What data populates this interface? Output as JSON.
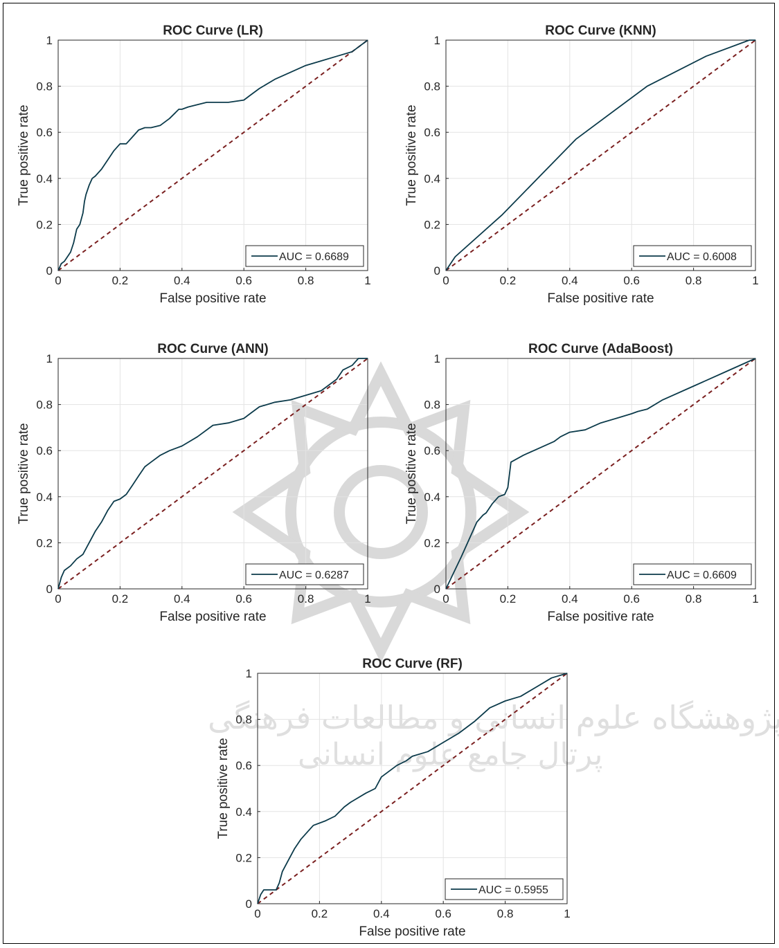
{
  "watermark": {
    "line1": "پژوهشگاه علوم انسانی و مطالعات فرهنگی",
    "line2": "پرتال جامع علوم انسانی"
  },
  "colors": {
    "curve": "#0b3a4a",
    "diagonal": "#7a1f1f",
    "grid": "#e3e3e3",
    "axis": "#262626"
  },
  "chart_data": [
    {
      "type": "line",
      "title": "ROC Curve (LR)",
      "xlabel": "False positive rate",
      "ylabel": "True positive rate",
      "xlim": [
        0,
        1
      ],
      "ylim": [
        0,
        1
      ],
      "xticks": [
        "0",
        "0.2",
        "0.4",
        "0.6",
        "0.8",
        "1"
      ],
      "yticks": [
        "0",
        "0.2",
        "0.4",
        "0.6",
        "0.8",
        "1"
      ],
      "grid": true,
      "legend_position": "bottom-right",
      "series": [
        {
          "name": "AUC = 0.6689",
          "x": [
            0,
            0.01,
            0.02,
            0.04,
            0.05,
            0.06,
            0.07,
            0.08,
            0.085,
            0.09,
            0.1,
            0.11,
            0.12,
            0.14,
            0.16,
            0.18,
            0.2,
            0.22,
            0.24,
            0.26,
            0.28,
            0.3,
            0.33,
            0.36,
            0.39,
            0.4,
            0.42,
            0.45,
            0.48,
            0.5,
            0.55,
            0.6,
            0.62,
            0.65,
            0.7,
            0.75,
            0.8,
            0.85,
            0.9,
            0.95,
            1.0
          ],
          "y": [
            0,
            0.03,
            0.04,
            0.08,
            0.12,
            0.18,
            0.2,
            0.25,
            0.3,
            0.33,
            0.37,
            0.4,
            0.41,
            0.44,
            0.48,
            0.52,
            0.55,
            0.55,
            0.58,
            0.61,
            0.62,
            0.62,
            0.63,
            0.66,
            0.7,
            0.7,
            0.71,
            0.72,
            0.73,
            0.73,
            0.73,
            0.74,
            0.76,
            0.79,
            0.83,
            0.86,
            0.89,
            0.91,
            0.93,
            0.95,
            1.0
          ]
        }
      ],
      "reference": {
        "x": [
          0,
          1
        ],
        "y": [
          0,
          1
        ]
      }
    },
    {
      "type": "line",
      "title": "ROC Curve (KNN)",
      "xlabel": "False positive rate",
      "ylabel": "True positive rate",
      "xlim": [
        0,
        1
      ],
      "ylim": [
        0,
        1
      ],
      "xticks": [
        "0",
        "0.2",
        "0.4",
        "0.6",
        "0.8",
        "1"
      ],
      "yticks": [
        "0",
        "0.2",
        "0.4",
        "0.6",
        "0.8",
        "1"
      ],
      "grid": true,
      "legend_position": "bottom-right",
      "series": [
        {
          "name": "AUC = 0.6008",
          "x": [
            0,
            0.03,
            0.18,
            0.42,
            0.65,
            0.84,
            0.98,
            1.0
          ],
          "y": [
            0,
            0.06,
            0.24,
            0.57,
            0.8,
            0.93,
            1.0,
            1.0
          ]
        }
      ],
      "reference": {
        "x": [
          0,
          1
        ],
        "y": [
          0,
          1
        ]
      }
    },
    {
      "type": "line",
      "title": "ROC Curve (ANN)",
      "xlabel": "False positive rate",
      "ylabel": "True positive rate",
      "xlim": [
        0,
        1
      ],
      "ylim": [
        0,
        1
      ],
      "xticks": [
        "0",
        "0.2",
        "0.4",
        "0.6",
        "0.8",
        "1"
      ],
      "yticks": [
        "0",
        "0.2",
        "0.4",
        "0.6",
        "0.8",
        "1"
      ],
      "grid": true,
      "legend_position": "bottom-right",
      "series": [
        {
          "name": "AUC = 0.6287",
          "x": [
            0,
            0.01,
            0.02,
            0.04,
            0.06,
            0.08,
            0.1,
            0.12,
            0.14,
            0.16,
            0.18,
            0.2,
            0.22,
            0.24,
            0.26,
            0.28,
            0.3,
            0.33,
            0.36,
            0.4,
            0.45,
            0.5,
            0.55,
            0.6,
            0.62,
            0.65,
            0.7,
            0.75,
            0.8,
            0.85,
            0.9,
            0.92,
            0.95,
            0.97,
            1.0
          ],
          "y": [
            0,
            0.05,
            0.08,
            0.1,
            0.13,
            0.15,
            0.2,
            0.25,
            0.29,
            0.34,
            0.38,
            0.39,
            0.41,
            0.45,
            0.49,
            0.53,
            0.55,
            0.58,
            0.6,
            0.62,
            0.66,
            0.71,
            0.72,
            0.74,
            0.76,
            0.79,
            0.81,
            0.82,
            0.84,
            0.86,
            0.91,
            0.95,
            0.97,
            1.0,
            1.0
          ]
        }
      ],
      "reference": {
        "x": [
          0,
          1
        ],
        "y": [
          0,
          1
        ]
      }
    },
    {
      "type": "line",
      "title": "ROC Curve (AdaBoost)",
      "xlabel": "False positive rate",
      "ylabel": "True positive rate",
      "xlim": [
        0,
        1
      ],
      "ylim": [
        0,
        1
      ],
      "xticks": [
        "0",
        "0.2",
        "0.4",
        "0.6",
        "0.8",
        "1"
      ],
      "yticks": [
        "0",
        "0.2",
        "0.4",
        "0.6",
        "0.8",
        "1"
      ],
      "grid": true,
      "legend_position": "bottom-right",
      "series": [
        {
          "name": "AUC = 0.6609",
          "x": [
            0,
            0.05,
            0.1,
            0.12,
            0.13,
            0.15,
            0.17,
            0.19,
            0.2,
            0.21,
            0.25,
            0.3,
            0.35,
            0.37,
            0.4,
            0.45,
            0.5,
            0.55,
            0.6,
            0.62,
            0.65,
            0.7,
            0.8,
            0.9,
            1.0
          ],
          "y": [
            0,
            0.14,
            0.29,
            0.32,
            0.33,
            0.37,
            0.4,
            0.41,
            0.44,
            0.55,
            0.58,
            0.61,
            0.64,
            0.66,
            0.68,
            0.69,
            0.72,
            0.74,
            0.76,
            0.77,
            0.78,
            0.82,
            0.88,
            0.94,
            1.0
          ]
        }
      ],
      "reference": {
        "x": [
          0,
          1
        ],
        "y": [
          0,
          1
        ]
      }
    },
    {
      "type": "line",
      "title": "ROC Curve (RF)",
      "xlabel": "False positive rate",
      "ylabel": "True positive rate",
      "xlim": [
        0,
        1
      ],
      "ylim": [
        0,
        1
      ],
      "xticks": [
        "0",
        "0.2",
        "0.4",
        "0.6",
        "0.8",
        "1"
      ],
      "yticks": [
        "0",
        "0.2",
        "0.4",
        "0.6",
        "0.8",
        "1"
      ],
      "grid": true,
      "legend_position": "bottom-right",
      "series": [
        {
          "name": "AUC = 0.5955",
          "x": [
            0,
            0.01,
            0.02,
            0.06,
            0.07,
            0.08,
            0.1,
            0.12,
            0.14,
            0.16,
            0.18,
            0.22,
            0.25,
            0.28,
            0.3,
            0.35,
            0.38,
            0.4,
            0.42,
            0.45,
            0.48,
            0.5,
            0.55,
            0.6,
            0.65,
            0.7,
            0.75,
            0.8,
            0.85,
            0.9,
            0.95,
            1.0
          ],
          "y": [
            0,
            0.04,
            0.06,
            0.06,
            0.09,
            0.14,
            0.19,
            0.24,
            0.28,
            0.31,
            0.34,
            0.36,
            0.38,
            0.42,
            0.44,
            0.48,
            0.5,
            0.55,
            0.57,
            0.6,
            0.62,
            0.64,
            0.66,
            0.7,
            0.74,
            0.79,
            0.85,
            0.88,
            0.9,
            0.94,
            0.98,
            1.0
          ]
        }
      ],
      "reference": {
        "x": [
          0,
          1
        ],
        "y": [
          0,
          1
        ]
      }
    }
  ]
}
